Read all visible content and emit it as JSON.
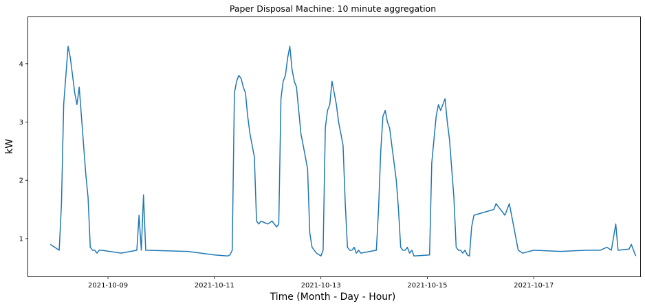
{
  "chart_data": {
    "type": "line",
    "title": "Paper Disposal Machine: 10 minute aggregation",
    "xlabel": "Time (Month - Day - Hour)",
    "ylabel": "kW",
    "xlim": [
      "2021-10-07 12:00",
      "2021-10-19 00:00"
    ],
    "ylim": [
      0.35,
      4.8
    ],
    "x_ticks": [
      "2021-10-09",
      "2021-10-11",
      "2021-10-13",
      "2021-10-15",
      "2021-10-17"
    ],
    "y_ticks": [
      1,
      2,
      3,
      4
    ],
    "grid": false,
    "line_color": "#1f77b4",
    "series": [
      {
        "x": [
          "2021-10-07 22:00",
          "2021-10-08 02:00",
          "2021-10-08 03:00",
          "2021-10-08 04:00",
          "2021-10-08 05:00",
          "2021-10-08 06:00",
          "2021-10-08 07:00",
          "2021-10-08 08:00",
          "2021-10-08 09:00",
          "2021-10-08 10:00",
          "2021-10-08 11:00",
          "2021-10-08 12:00",
          "2021-10-08 13:00",
          "2021-10-08 14:00",
          "2021-10-08 15:00",
          "2021-10-08 16:00",
          "2021-10-08 17:00",
          "2021-10-08 18:00",
          "2021-10-08 19:00",
          "2021-10-08 20:00",
          "2021-10-08 21:00",
          "2021-10-09 06:00",
          "2021-10-09 13:00",
          "2021-10-09 14:00",
          "2021-10-09 15:00",
          "2021-10-09 16:00",
          "2021-10-09 17:00",
          "2021-10-10 12:00",
          "2021-10-11 00:00",
          "2021-10-11 06:00",
          "2021-10-11 07:00",
          "2021-10-11 08:00",
          "2021-10-11 09:00",
          "2021-10-11 10:00",
          "2021-10-11 11:00",
          "2021-10-11 12:00",
          "2021-10-11 13:00",
          "2021-10-11 14:00",
          "2021-10-11 15:00",
          "2021-10-11 16:00",
          "2021-10-11 17:00",
          "2021-10-11 18:00",
          "2021-10-11 19:00",
          "2021-10-11 20:00",
          "2021-10-11 21:00",
          "2021-10-12 00:00",
          "2021-10-12 02:00",
          "2021-10-12 04:00",
          "2021-10-12 05:00",
          "2021-10-12 06:00",
          "2021-10-12 07:00",
          "2021-10-12 08:00",
          "2021-10-12 09:00",
          "2021-10-12 10:00",
          "2021-10-12 11:00",
          "2021-10-12 12:00",
          "2021-10-12 13:00",
          "2021-10-12 14:00",
          "2021-10-12 15:00",
          "2021-10-12 16:00",
          "2021-10-12 17:00",
          "2021-10-12 18:00",
          "2021-10-12 19:00",
          "2021-10-12 20:00",
          "2021-10-12 21:00",
          "2021-10-12 22:00",
          "2021-10-13 00:00",
          "2021-10-13 01:00",
          "2021-10-13 02:00",
          "2021-10-13 03:00",
          "2021-10-13 04:00",
          "2021-10-13 05:00",
          "2021-10-13 06:00",
          "2021-10-13 07:00",
          "2021-10-13 08:00",
          "2021-10-13 09:00",
          "2021-10-13 10:00",
          "2021-10-13 11:00",
          "2021-10-13 12:00",
          "2021-10-13 13:00",
          "2021-10-13 14:00",
          "2021-10-13 15:00",
          "2021-10-13 16:00",
          "2021-10-13 17:00",
          "2021-10-13 18:00",
          "2021-10-14 01:00",
          "2021-10-14 02:00",
          "2021-10-14 03:00",
          "2021-10-14 04:00",
          "2021-10-14 05:00",
          "2021-10-14 06:00",
          "2021-10-14 07:00",
          "2021-10-14 08:00",
          "2021-10-14 09:00",
          "2021-10-14 10:00",
          "2021-10-14 11:00",
          "2021-10-14 12:00",
          "2021-10-14 13:00",
          "2021-10-14 14:00",
          "2021-10-14 15:00",
          "2021-10-14 16:00",
          "2021-10-14 17:00",
          "2021-10-14 18:00",
          "2021-10-15 01:00",
          "2021-10-15 02:00",
          "2021-10-15 04:00",
          "2021-10-15 05:00",
          "2021-10-15 06:00",
          "2021-10-15 07:00",
          "2021-10-15 08:00",
          "2021-10-15 09:00",
          "2021-10-15 10:00",
          "2021-10-15 11:00",
          "2021-10-15 12:00",
          "2021-10-15 13:00",
          "2021-10-15 14:00",
          "2021-10-15 15:00",
          "2021-10-15 16:00",
          "2021-10-15 17:00",
          "2021-10-15 18:00",
          "2021-10-15 19:00",
          "2021-10-15 20:00",
          "2021-10-15 21:00",
          "2021-10-16 06:00",
          "2021-10-16 07:00",
          "2021-10-16 09:00",
          "2021-10-16 11:00",
          "2021-10-16 13:00",
          "2021-10-16 15:00",
          "2021-10-16 17:00",
          "2021-10-16 19:00",
          "2021-10-17 00:00",
          "2021-10-17 12:00",
          "2021-10-18 00:00",
          "2021-10-18 06:00",
          "2021-10-18 09:00",
          "2021-10-18 11:00",
          "2021-10-18 13:00",
          "2021-10-18 14:00",
          "2021-10-18 19:00",
          "2021-10-18 20:00",
          "2021-10-18 21:00",
          "2021-10-18 22:00"
        ],
        "values": [
          0.9,
          0.8,
          1.6,
          3.3,
          3.8,
          4.3,
          4.1,
          3.8,
          3.5,
          3.3,
          3.6,
          3.1,
          2.6,
          2.1,
          1.7,
          0.85,
          0.8,
          0.8,
          0.75,
          0.8,
          0.8,
          0.75,
          0.8,
          1.4,
          0.8,
          1.75,
          0.8,
          0.78,
          0.72,
          0.7,
          0.72,
          0.8,
          3.5,
          3.7,
          3.8,
          3.75,
          3.6,
          3.5,
          3.1,
          2.8,
          2.6,
          2.4,
          1.3,
          1.25,
          1.3,
          1.25,
          1.3,
          1.2,
          1.25,
          3.4,
          3.7,
          3.8,
          4.1,
          4.3,
          3.9,
          3.7,
          3.6,
          3.2,
          2.8,
          2.6,
          2.4,
          2.2,
          1.1,
          0.85,
          0.8,
          0.75,
          0.7,
          0.8,
          2.9,
          3.2,
          3.3,
          3.7,
          3.5,
          3.3,
          3.0,
          2.8,
          2.6,
          1.6,
          0.85,
          0.8,
          0.8,
          0.85,
          0.75,
          0.8,
          0.75,
          0.8,
          1.5,
          2.5,
          3.1,
          3.2,
          3.0,
          2.9,
          2.6,
          2.3,
          2.0,
          1.5,
          0.85,
          0.8,
          0.8,
          0.85,
          0.75,
          0.8,
          0.7,
          0.72,
          2.3,
          3.1,
          3.3,
          3.2,
          3.3,
          3.4,
          3.0,
          2.7,
          2.2,
          1.7,
          0.85,
          0.8,
          0.8,
          0.75,
          0.8,
          0.72,
          0.7,
          1.2,
          1.4,
          1.5,
          1.6,
          1.5,
          1.4,
          1.6,
          1.2,
          0.8,
          0.75,
          0.8,
          0.78,
          0.8,
          0.8,
          0.85,
          0.8,
          1.25,
          0.8,
          0.82,
          0.9,
          0.8,
          0.7
        ]
      }
    ]
  }
}
